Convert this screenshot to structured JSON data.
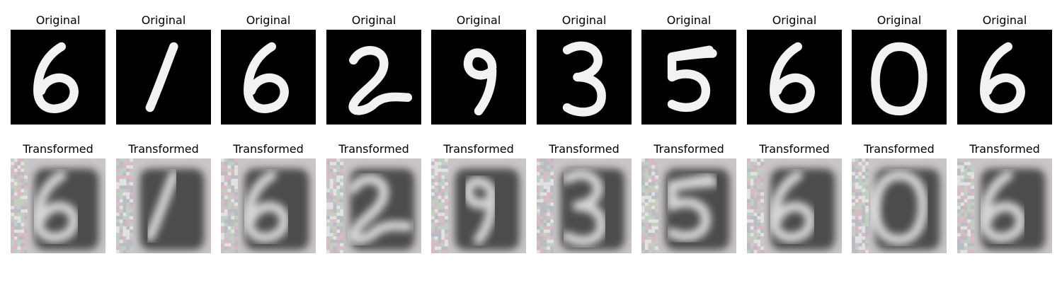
{
  "figure": {
    "rows": [
      {
        "row_name": "original",
        "panels": [
          {
            "title": "Original",
            "digit": "6"
          },
          {
            "title": "Original",
            "digit": "1"
          },
          {
            "title": "Original",
            "digit": "6"
          },
          {
            "title": "Original",
            "digit": "2"
          },
          {
            "title": "Original",
            "digit": "9"
          },
          {
            "title": "Original",
            "digit": "3"
          },
          {
            "title": "Original",
            "digit": "5"
          },
          {
            "title": "Original",
            "digit": "6"
          },
          {
            "title": "Original",
            "digit": "0"
          },
          {
            "title": "Original",
            "digit": "6"
          }
        ]
      },
      {
        "row_name": "transformed",
        "panels": [
          {
            "title": "Transformed",
            "digit": "6"
          },
          {
            "title": "Transformed",
            "digit": "1"
          },
          {
            "title": "Transformed",
            "digit": "6"
          },
          {
            "title": "Transformed",
            "digit": "2"
          },
          {
            "title": "Transformed",
            "digit": "9"
          },
          {
            "title": "Transformed",
            "digit": "3"
          },
          {
            "title": "Transformed",
            "digit": "5"
          },
          {
            "title": "Transformed",
            "digit": "6"
          },
          {
            "title": "Transformed",
            "digit": "0"
          },
          {
            "title": "Transformed",
            "digit": "6"
          }
        ]
      }
    ],
    "colors": {
      "original_background": "#000000",
      "original_stroke": "#f2f2f2",
      "transformed_background": "#c9c5c8",
      "transformed_dark": "#2e2e2e",
      "transformed_light": "#eeeeee",
      "transformed_noise_pink": "#d8b9c4",
      "transformed_noise_green": "#bfd0bf"
    }
  }
}
